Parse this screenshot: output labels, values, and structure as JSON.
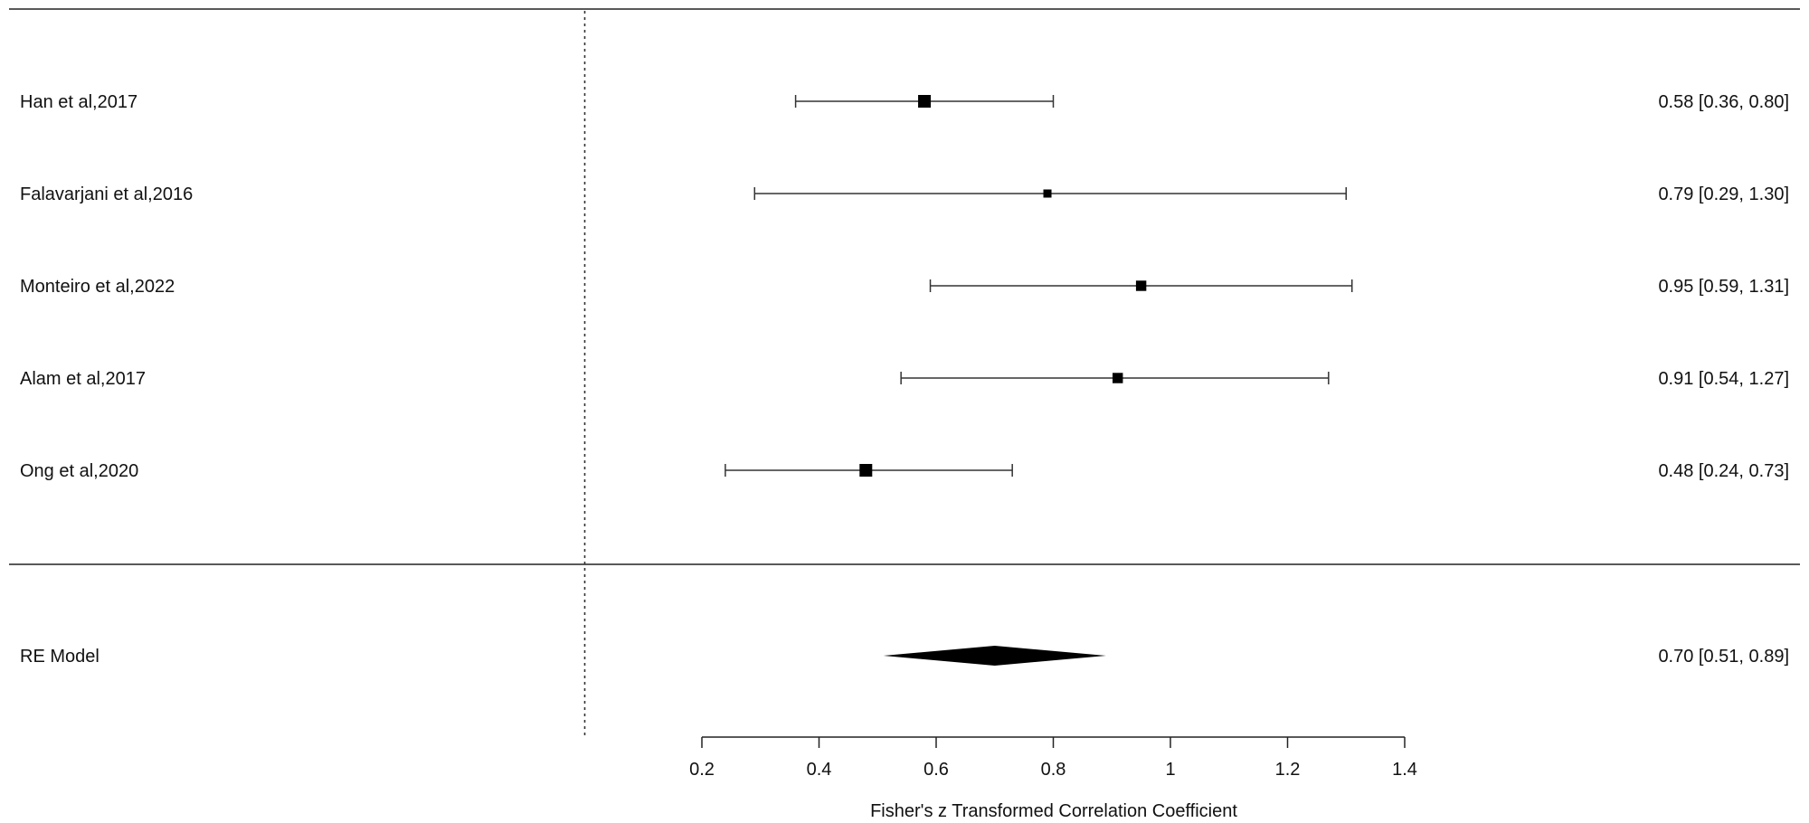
{
  "chart_data": {
    "type": "forest",
    "xlabel": "Fisher's z Transformed Correlation Coefficient",
    "xlim": [
      0.2,
      1.4
    ],
    "xticks": [
      "0.2",
      "0.4",
      "0.6",
      "0.8",
      "1",
      "1.2",
      "1.4"
    ],
    "reference_line": 0,
    "studies": [
      {
        "label": "Han et al,2017",
        "estimate": 0.58,
        "lower": 0.36,
        "upper": 0.8,
        "weight": 1.0,
        "annotation": "0.58 [0.36, 0.80]"
      },
      {
        "label": "Falavarjani et al,2016",
        "estimate": 0.79,
        "lower": 0.29,
        "upper": 1.3,
        "weight": 0.25,
        "annotation": "0.79 [0.29, 1.30]"
      },
      {
        "label": "Monteiro et al,2022",
        "estimate": 0.95,
        "lower": 0.59,
        "upper": 1.31,
        "weight": 0.55,
        "annotation": "0.95 [0.59, 1.31]"
      },
      {
        "label": "Alam et al,2017",
        "estimate": 0.91,
        "lower": 0.54,
        "upper": 1.27,
        "weight": 0.55,
        "annotation": "0.91 [0.54, 1.27]"
      },
      {
        "label": "Ong et al,2020",
        "estimate": 0.48,
        "lower": 0.24,
        "upper": 0.73,
        "weight": 1.0,
        "annotation": "0.48 [0.24, 0.73]"
      }
    ],
    "summary": {
      "label": "RE Model",
      "estimate": 0.7,
      "lower": 0.51,
      "upper": 0.89,
      "annotation": "0.70 [0.51, 0.89]"
    }
  }
}
